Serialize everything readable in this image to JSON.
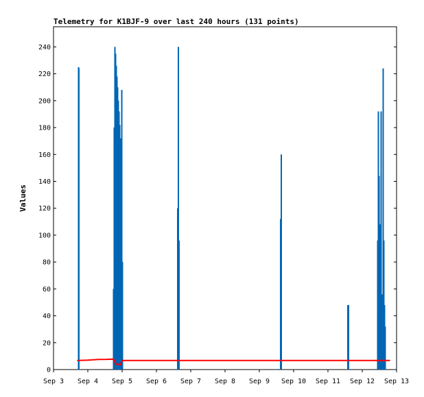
{
  "chart_data": {
    "type": "line",
    "title": "Telemetry for K1BJF-9 over last 240 hours (131 points)",
    "xlabel": "",
    "ylabel": "Values",
    "x_tick_labels": [
      "Sep 3",
      "Sep 4",
      "Sep 5",
      "Sep 6",
      "Sep 7",
      "Sep 8",
      "Sep 9",
      "Sep 10",
      "Sep 11",
      "Sep 12",
      "Sep 13"
    ],
    "xlim": [
      3.0,
      13.0
    ],
    "ylim": [
      0,
      255
    ],
    "y_ticks": [
      0,
      20,
      40,
      60,
      80,
      100,
      120,
      140,
      160,
      180,
      200,
      220,
      240
    ],
    "grid": false,
    "legend": "none",
    "series": [
      {
        "color": "#0066b3",
        "style": "spikes",
        "points": [
          [
            3.73,
            225
          ],
          [
            3.74,
            224
          ],
          [
            4.75,
            60
          ],
          [
            4.77,
            180
          ],
          [
            4.79,
            240
          ],
          [
            4.81,
            235
          ],
          [
            4.83,
            226
          ],
          [
            4.85,
            218
          ],
          [
            4.87,
            210
          ],
          [
            4.89,
            200
          ],
          [
            4.91,
            192
          ],
          [
            4.93,
            182
          ],
          [
            4.95,
            172
          ],
          [
            4.97,
            165
          ],
          [
            4.99,
            208
          ],
          [
            5.01,
            80
          ],
          [
            6.62,
            120
          ],
          [
            6.64,
            240
          ],
          [
            6.66,
            96
          ],
          [
            9.62,
            112
          ],
          [
            9.64,
            160
          ],
          [
            11.58,
            48
          ],
          [
            11.6,
            48
          ],
          [
            12.45,
            96
          ],
          [
            12.47,
            192
          ],
          [
            12.49,
            144
          ],
          [
            12.51,
            36
          ],
          [
            12.53,
            108
          ],
          [
            12.55,
            192
          ],
          [
            12.57,
            40
          ],
          [
            12.59,
            56
          ],
          [
            12.61,
            224
          ],
          [
            12.63,
            96
          ],
          [
            12.65,
            48
          ],
          [
            12.67,
            32
          ]
        ]
      },
      {
        "color": "#ff0000",
        "style": "line",
        "points": [
          [
            3.7,
            6.8
          ],
          [
            4.0,
            7.0
          ],
          [
            4.3,
            7.5
          ],
          [
            4.55,
            7.6
          ],
          [
            4.75,
            7.8
          ],
          [
            4.82,
            4.0
          ],
          [
            4.95,
            3.6
          ],
          [
            5.0,
            6.8
          ],
          [
            6.0,
            6.8
          ],
          [
            7.0,
            6.8
          ],
          [
            8.0,
            6.8
          ],
          [
            9.0,
            6.8
          ],
          [
            10.0,
            6.8
          ],
          [
            11.0,
            6.8
          ],
          [
            12.0,
            6.8
          ],
          [
            12.8,
            6.8
          ]
        ]
      }
    ]
  }
}
